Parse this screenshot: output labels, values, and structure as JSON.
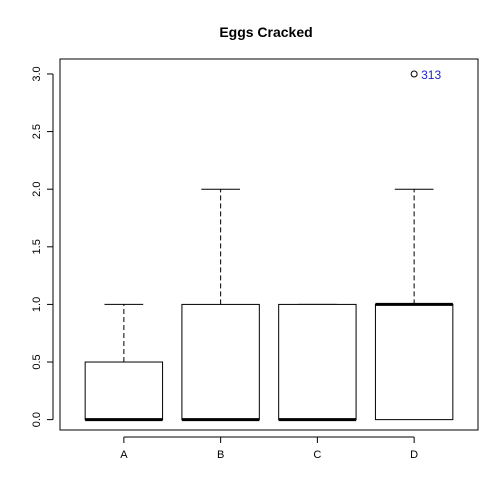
{
  "chart_data": {
    "type": "boxplot",
    "title": "Eggs Cracked",
    "xlabel": "",
    "ylabel": "",
    "categories": [
      "A",
      "B",
      "C",
      "D"
    ],
    "ylim": [
      -0.09,
      3.13
    ],
    "y_ticks": [
      0.0,
      0.5,
      1.0,
      1.5,
      2.0,
      2.5,
      3.0
    ],
    "y_tick_labels": [
      "0.0",
      "0.5",
      "1.0",
      "1.5",
      "2.0",
      "2.5",
      "3.0"
    ],
    "grid": false,
    "legend": "none",
    "boxes": [
      {
        "category": "A",
        "whisker_low": 0,
        "q1": 0,
        "median": 0,
        "q3": 0.5,
        "whisker_high": 1
      },
      {
        "category": "B",
        "whisker_low": 0,
        "q1": 0,
        "median": 0,
        "q3": 1,
        "whisker_high": 2
      },
      {
        "category": "C",
        "whisker_low": 0,
        "q1": 0,
        "median": 0,
        "q3": 1,
        "whisker_high": 1
      },
      {
        "category": "D",
        "whisker_low": 0,
        "q1": 0,
        "median": 1,
        "q3": 1,
        "whisker_high": 2
      }
    ],
    "outliers": [
      {
        "category": "D",
        "value": 3,
        "label": "313"
      }
    ],
    "colors": {
      "box": "#000000",
      "outlier_label": "#2222cc"
    }
  }
}
